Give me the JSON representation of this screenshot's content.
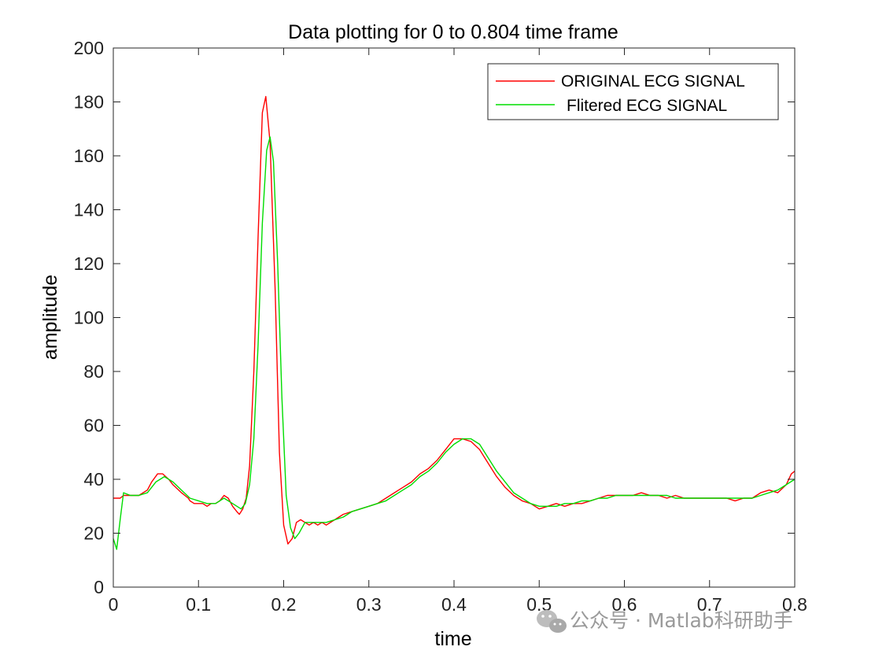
{
  "chart_data": {
    "type": "line",
    "title": "Data plotting for 0 to 0.804 time frame",
    "xlabel": "time",
    "ylabel": "amplitude",
    "xlim": [
      0,
      0.8
    ],
    "ylim": [
      0,
      200
    ],
    "xticks": [
      "0",
      "0.1",
      "0.2",
      "0.3",
      "0.4",
      "0.5",
      "0.6",
      "0.7",
      "0.8"
    ],
    "yticks": [
      "0",
      "20",
      "40",
      "60",
      "80",
      "100",
      "120",
      "140",
      "160",
      "180",
      "200"
    ],
    "grid": false,
    "legend_position": "top-right",
    "series": [
      {
        "name": "ORIGINAL ECG SIGNAL",
        "color": "#ff0000",
        "points": [
          [
            0,
            33
          ],
          [
            0.008,
            33
          ],
          [
            0.012,
            34
          ],
          [
            0.02,
            34
          ],
          [
            0.03,
            34
          ],
          [
            0.04,
            36
          ],
          [
            0.045,
            39
          ],
          [
            0.052,
            42
          ],
          [
            0.058,
            42
          ],
          [
            0.065,
            40
          ],
          [
            0.07,
            38
          ],
          [
            0.08,
            35
          ],
          [
            0.088,
            33
          ],
          [
            0.09,
            32
          ],
          [
            0.095,
            31
          ],
          [
            0.1,
            31
          ],
          [
            0.105,
            31
          ],
          [
            0.11,
            30
          ],
          [
            0.115,
            31
          ],
          [
            0.12,
            31
          ],
          [
            0.125,
            32
          ],
          [
            0.13,
            34
          ],
          [
            0.135,
            33
          ],
          [
            0.14,
            30
          ],
          [
            0.145,
            28
          ],
          [
            0.148,
            27
          ],
          [
            0.152,
            29
          ],
          [
            0.156,
            33
          ],
          [
            0.16,
            45
          ],
          [
            0.165,
            80
          ],
          [
            0.17,
            130
          ],
          [
            0.175,
            176
          ],
          [
            0.179,
            182
          ],
          [
            0.184,
            165
          ],
          [
            0.19,
            110
          ],
          [
            0.195,
            50
          ],
          [
            0.2,
            23
          ],
          [
            0.205,
            16
          ],
          [
            0.21,
            18
          ],
          [
            0.215,
            24
          ],
          [
            0.22,
            25
          ],
          [
            0.225,
            24
          ],
          [
            0.23,
            23
          ],
          [
            0.235,
            24
          ],
          [
            0.24,
            23
          ],
          [
            0.245,
            24
          ],
          [
            0.25,
            23
          ],
          [
            0.26,
            25
          ],
          [
            0.27,
            27
          ],
          [
            0.28,
            28
          ],
          [
            0.29,
            29
          ],
          [
            0.3,
            30
          ],
          [
            0.31,
            31
          ],
          [
            0.32,
            33
          ],
          [
            0.33,
            35
          ],
          [
            0.34,
            37
          ],
          [
            0.35,
            39
          ],
          [
            0.36,
            42
          ],
          [
            0.37,
            44
          ],
          [
            0.38,
            47
          ],
          [
            0.39,
            51
          ],
          [
            0.4,
            55
          ],
          [
            0.41,
            55
          ],
          [
            0.42,
            54
          ],
          [
            0.43,
            51
          ],
          [
            0.44,
            46
          ],
          [
            0.45,
            41
          ],
          [
            0.46,
            37
          ],
          [
            0.47,
            34
          ],
          [
            0.48,
            32
          ],
          [
            0.49,
            31
          ],
          [
            0.5,
            29
          ],
          [
            0.51,
            30
          ],
          [
            0.52,
            31
          ],
          [
            0.53,
            30
          ],
          [
            0.54,
            31
          ],
          [
            0.55,
            31
          ],
          [
            0.56,
            32
          ],
          [
            0.57,
            33
          ],
          [
            0.58,
            34
          ],
          [
            0.59,
            34
          ],
          [
            0.6,
            34
          ],
          [
            0.61,
            34
          ],
          [
            0.62,
            35
          ],
          [
            0.63,
            34
          ],
          [
            0.64,
            34
          ],
          [
            0.65,
            33
          ],
          [
            0.66,
            34
          ],
          [
            0.67,
            33
          ],
          [
            0.68,
            33
          ],
          [
            0.69,
            33
          ],
          [
            0.7,
            33
          ],
          [
            0.71,
            33
          ],
          [
            0.72,
            33
          ],
          [
            0.73,
            32
          ],
          [
            0.74,
            33
          ],
          [
            0.75,
            33
          ],
          [
            0.76,
            35
          ],
          [
            0.77,
            36
          ],
          [
            0.78,
            35
          ],
          [
            0.79,
            38
          ],
          [
            0.796,
            42
          ],
          [
            0.8,
            43
          ]
        ]
      },
      {
        "name": "Flitered ECG SIGNAL",
        "color": "#00dd00",
        "points": [
          [
            0,
            18
          ],
          [
            0.004,
            14
          ],
          [
            0.008,
            25
          ],
          [
            0.012,
            35
          ],
          [
            0.02,
            34
          ],
          [
            0.03,
            34
          ],
          [
            0.04,
            35
          ],
          [
            0.05,
            39
          ],
          [
            0.06,
            41
          ],
          [
            0.07,
            39
          ],
          [
            0.08,
            36
          ],
          [
            0.09,
            33
          ],
          [
            0.1,
            32
          ],
          [
            0.11,
            31
          ],
          [
            0.12,
            31
          ],
          [
            0.13,
            33
          ],
          [
            0.14,
            31
          ],
          [
            0.15,
            29
          ],
          [
            0.155,
            31
          ],
          [
            0.16,
            38
          ],
          [
            0.165,
            55
          ],
          [
            0.17,
            90
          ],
          [
            0.175,
            135
          ],
          [
            0.18,
            162
          ],
          [
            0.184,
            167
          ],
          [
            0.188,
            158
          ],
          [
            0.193,
            120
          ],
          [
            0.198,
            70
          ],
          [
            0.203,
            34
          ],
          [
            0.208,
            22
          ],
          [
            0.213,
            18
          ],
          [
            0.218,
            20
          ],
          [
            0.225,
            24
          ],
          [
            0.23,
            24
          ],
          [
            0.24,
            24
          ],
          [
            0.25,
            24
          ],
          [
            0.26,
            25
          ],
          [
            0.27,
            26
          ],
          [
            0.28,
            28
          ],
          [
            0.29,
            29
          ],
          [
            0.3,
            30
          ],
          [
            0.31,
            31
          ],
          [
            0.32,
            32
          ],
          [
            0.33,
            34
          ],
          [
            0.34,
            36
          ],
          [
            0.35,
            38
          ],
          [
            0.36,
            41
          ],
          [
            0.37,
            43
          ],
          [
            0.38,
            46
          ],
          [
            0.39,
            50
          ],
          [
            0.4,
            53
          ],
          [
            0.41,
            55
          ],
          [
            0.42,
            55
          ],
          [
            0.43,
            53
          ],
          [
            0.44,
            48
          ],
          [
            0.45,
            43
          ],
          [
            0.46,
            39
          ],
          [
            0.47,
            35
          ],
          [
            0.48,
            33
          ],
          [
            0.49,
            31
          ],
          [
            0.5,
            30
          ],
          [
            0.51,
            30
          ],
          [
            0.52,
            30
          ],
          [
            0.53,
            31
          ],
          [
            0.54,
            31
          ],
          [
            0.55,
            32
          ],
          [
            0.56,
            32
          ],
          [
            0.57,
            33
          ],
          [
            0.58,
            33
          ],
          [
            0.59,
            34
          ],
          [
            0.6,
            34
          ],
          [
            0.61,
            34
          ],
          [
            0.62,
            34
          ],
          [
            0.63,
            34
          ],
          [
            0.64,
            34
          ],
          [
            0.65,
            34
          ],
          [
            0.66,
            33
          ],
          [
            0.67,
            33
          ],
          [
            0.68,
            33
          ],
          [
            0.69,
            33
          ],
          [
            0.7,
            33
          ],
          [
            0.71,
            33
          ],
          [
            0.72,
            33
          ],
          [
            0.73,
            33
          ],
          [
            0.74,
            33
          ],
          [
            0.75,
            33
          ],
          [
            0.76,
            34
          ],
          [
            0.77,
            35
          ],
          [
            0.78,
            36
          ],
          [
            0.79,
            38
          ],
          [
            0.8,
            40
          ]
        ]
      }
    ]
  },
  "watermark": {
    "text": "公众号 · Matlab科研助手",
    "icon": "wechat-icon"
  }
}
